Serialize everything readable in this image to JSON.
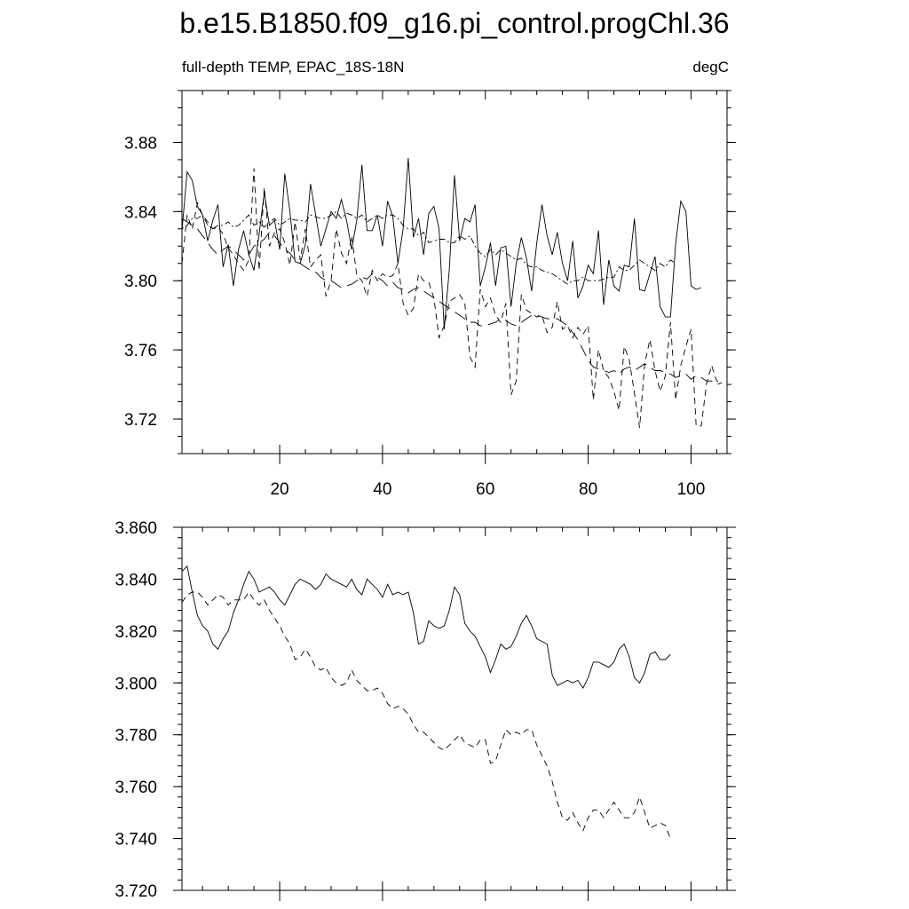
{
  "title": "b.e15.B1850.f09_g16.pi_control.progChl.36",
  "subtitle_left": "full-depth TEMP, EPAC_18S-18N",
  "subtitle_right": "degC",
  "chart_data": [
    {
      "type": "line",
      "x_range": [
        1,
        107
      ],
      "ylim": [
        3.7,
        3.91
      ],
      "x_ticks": [
        20,
        40,
        60,
        80,
        100
      ],
      "y_ticks": [
        3.72,
        3.76,
        3.8,
        3.84,
        3.88
      ],
      "y_tick_labels": [
        "3.72",
        "3.76",
        "3.80",
        "3.84",
        "3.88"
      ],
      "x_tick_labels": [
        "20",
        "40",
        "60",
        "80",
        "100"
      ],
      "series": [
        {
          "style": "solid",
          "x_start": 1,
          "values": [
            3.829,
            3.863,
            3.858,
            3.843,
            3.838,
            3.823,
            3.835,
            3.844,
            3.808,
            3.821,
            3.797,
            3.818,
            3.829,
            3.815,
            3.806,
            3.827,
            3.851,
            3.832,
            3.835,
            3.818,
            3.862,
            3.84,
            3.811,
            3.81,
            3.821,
            3.856,
            3.838,
            3.82,
            3.83,
            3.84,
            3.836,
            3.847,
            3.835,
            3.818,
            3.835,
            3.867,
            3.829,
            3.829,
            3.838,
            3.82,
            3.846,
            3.837,
            3.81,
            3.83,
            3.871,
            3.825,
            3.836,
            3.815,
            3.839,
            3.843,
            3.83,
            3.772,
            3.807,
            3.861,
            3.823,
            3.836,
            3.834,
            3.844,
            3.797,
            3.808,
            3.822,
            3.797,
            3.819,
            3.82,
            3.785,
            3.81,
            3.825,
            3.813,
            3.794,
            3.822,
            3.844,
            3.826,
            3.815,
            3.828,
            3.81,
            3.8,
            3.823,
            3.79,
            3.797,
            3.809,
            3.804,
            3.829,
            3.786,
            3.812,
            3.797,
            3.794,
            3.809,
            3.808,
            3.836,
            3.795,
            3.794,
            3.804,
            3.814,
            3.785,
            3.779,
            3.779,
            3.821,
            3.846,
            3.84,
            3.797,
            3.795,
            3.796
          ]
        },
        {
          "style": "dashed",
          "x_start": 1,
          "values": [
            3.81,
            3.838,
            3.83,
            3.845,
            3.838,
            3.834,
            3.83,
            3.831,
            3.827,
            3.819,
            3.815,
            3.81,
            3.806,
            3.812,
            3.865,
            3.806,
            3.854,
            3.82,
            3.828,
            3.83,
            3.822,
            3.809,
            3.834,
            3.812,
            3.83,
            3.808,
            3.812,
            3.815,
            3.791,
            3.8,
            3.83,
            3.816,
            3.81,
            3.826,
            3.803,
            3.8,
            3.791,
            3.806,
            3.8,
            3.804,
            3.802,
            3.803,
            3.81,
            3.787,
            3.78,
            3.784,
            3.804,
            3.8,
            3.799,
            3.79,
            3.767,
            3.774,
            3.788,
            3.79,
            3.792,
            3.787,
            3.756,
            3.75,
            3.795,
            3.785,
            3.79,
            3.78,
            3.776,
            3.787,
            3.734,
            3.742,
            3.792,
            3.783,
            3.781,
            3.779,
            3.78,
            3.77,
            3.773,
            3.788,
            3.772,
            3.774,
            3.767,
            3.773,
            3.769,
            3.774,
            3.731,
            3.76,
            3.748,
            3.744,
            3.736,
            3.725,
            3.762,
            3.754,
            3.735,
            3.715,
            3.752,
            3.766,
            3.748,
            3.736,
            3.745,
            3.776,
            3.731,
            3.751,
            3.762,
            3.772,
            3.716,
            3.716,
            3.74,
            3.751,
            3.742,
            3.741
          ]
        },
        {
          "style": "dash-dot",
          "x_start": 1,
          "values": [
            3.83,
            3.832,
            3.836,
            3.836,
            3.838,
            3.832,
            3.83,
            3.832,
            3.832,
            3.834,
            3.831,
            3.832,
            3.835,
            3.838,
            3.832,
            3.834,
            3.831,
            3.834,
            3.836,
            3.832,
            3.834,
            3.836,
            3.835,
            3.835,
            3.834,
            3.838,
            3.837,
            3.836,
            3.836,
            3.838,
            3.84,
            3.836,
            3.839,
            3.838,
            3.836,
            3.838,
            3.834,
            3.836,
            3.838,
            3.836,
            3.838,
            3.838,
            3.836,
            3.832,
            3.83,
            3.83,
            3.826,
            3.828,
            3.822,
            3.823,
            3.824,
            3.824,
            3.822,
            3.822,
            3.826,
            3.824,
            3.826,
            3.82,
            3.816,
            3.814,
            3.818,
            3.815,
            3.818,
            3.816,
            3.814,
            3.812,
            3.813,
            3.809,
            3.808,
            3.808,
            3.806,
            3.805,
            3.804,
            3.802,
            3.8,
            3.798,
            3.8,
            3.8,
            3.802,
            3.8,
            3.8,
            3.8,
            3.801,
            3.802,
            3.802,
            3.808,
            3.806,
            3.806,
            3.809,
            3.812,
            3.81,
            3.808,
            3.806,
            3.81,
            3.808,
            3.812,
            3.81
          ]
        },
        {
          "style": "long-dash",
          "x_start": 1,
          "values": [
            3.836,
            3.834,
            3.832,
            3.83,
            3.826,
            3.822,
            3.818,
            3.815,
            3.818,
            3.82,
            3.818,
            3.815,
            3.812,
            3.815,
            3.82,
            3.822,
            3.824,
            3.828,
            3.826,
            3.822,
            3.818,
            3.816,
            3.812,
            3.81,
            3.808,
            3.806,
            3.805,
            3.802,
            3.8,
            3.8,
            3.798,
            3.796,
            3.797,
            3.798,
            3.8,
            3.802,
            3.801,
            3.804,
            3.802,
            3.8,
            3.797,
            3.799,
            3.796,
            3.795,
            3.793,
            3.795,
            3.796,
            3.794,
            3.792,
            3.79,
            3.788,
            3.786,
            3.784,
            3.782,
            3.78,
            3.778,
            3.776,
            3.776,
            3.774,
            3.774,
            3.775,
            3.776,
            3.778,
            3.777,
            3.775,
            3.774,
            3.776,
            3.778,
            3.78,
            3.78,
            3.779,
            3.778,
            3.778,
            3.778,
            3.776,
            3.774,
            3.77,
            3.766,
            3.76,
            3.754,
            3.75,
            3.749,
            3.748,
            3.747,
            3.748,
            3.746,
            3.749,
            3.75,
            3.748,
            3.75,
            3.752,
            3.75,
            3.748,
            3.748,
            3.747,
            3.746,
            3.744,
            3.745,
            3.746,
            3.743,
            3.745,
            3.744,
            3.742,
            3.742,
            3.74,
            3.741
          ]
        }
      ]
    },
    {
      "type": "line",
      "x_range": [
        1,
        107
      ],
      "ylim": [
        3.72,
        3.86
      ],
      "x_ticks": [
        20,
        40,
        60,
        80,
        100
      ],
      "y_ticks": [
        3.72,
        3.74,
        3.76,
        3.78,
        3.8,
        3.82,
        3.84,
        3.86
      ],
      "y_tick_labels": [
        "3.720",
        "3.740",
        "3.760",
        "3.780",
        "3.800",
        "3.820",
        "3.840",
        "3.860"
      ],
      "series": [
        {
          "style": "solid",
          "x_start": 1,
          "values": [
            3.843,
            3.845,
            3.835,
            3.826,
            3.822,
            3.82,
            3.815,
            3.813,
            3.817,
            3.82,
            3.827,
            3.832,
            3.838,
            3.843,
            3.84,
            3.835,
            3.836,
            3.837,
            3.835,
            3.832,
            3.83,
            3.834,
            3.838,
            3.84,
            3.839,
            3.838,
            3.836,
            3.838,
            3.842,
            3.84,
            3.839,
            3.838,
            3.837,
            3.84,
            3.836,
            3.834,
            3.84,
            3.838,
            3.836,
            3.833,
            3.838,
            3.834,
            3.835,
            3.834,
            3.835,
            3.827,
            3.815,
            3.816,
            3.824,
            3.822,
            3.821,
            3.822,
            3.828,
            3.837,
            3.834,
            3.823,
            3.82,
            3.818,
            3.814,
            3.81,
            3.804,
            3.809,
            3.815,
            3.813,
            3.814,
            3.818,
            3.823,
            3.826,
            3.822,
            3.817,
            3.816,
            3.815,
            3.803,
            3.799,
            3.8,
            3.801,
            3.8,
            3.801,
            3.798,
            3.802,
            3.808,
            3.808,
            3.807,
            3.806,
            3.808,
            3.813,
            3.815,
            3.81,
            3.802,
            3.8,
            3.804,
            3.811,
            3.812,
            3.809,
            3.809,
            3.811
          ]
        },
        {
          "style": "dashed",
          "x_start": 1,
          "values": [
            3.831,
            3.834,
            3.835,
            3.835,
            3.833,
            3.83,
            3.832,
            3.834,
            3.833,
            3.83,
            3.832,
            3.832,
            3.832,
            3.835,
            3.832,
            3.83,
            3.832,
            3.828,
            3.825,
            3.822,
            3.818,
            3.815,
            3.809,
            3.81,
            3.813,
            3.81,
            3.806,
            3.805,
            3.806,
            3.802,
            3.8,
            3.799,
            3.8,
            3.805,
            3.801,
            3.799,
            3.797,
            3.797,
            3.798,
            3.796,
            3.792,
            3.79,
            3.791,
            3.79,
            3.788,
            3.784,
            3.781,
            3.781,
            3.779,
            3.777,
            3.775,
            3.774,
            3.776,
            3.778,
            3.78,
            3.777,
            3.776,
            3.775,
            3.778,
            3.778,
            3.769,
            3.77,
            3.776,
            3.782,
            3.78,
            3.781,
            3.78,
            3.782,
            3.782,
            3.776,
            3.772,
            3.768,
            3.762,
            3.754,
            3.748,
            3.747,
            3.75,
            3.746,
            3.743,
            3.748,
            3.751,
            3.751,
            3.748,
            3.751,
            3.754,
            3.751,
            3.748,
            3.748,
            3.75,
            3.756,
            3.75,
            3.744,
            3.745,
            3.746,
            3.745,
            3.74
          ]
        }
      ]
    }
  ]
}
